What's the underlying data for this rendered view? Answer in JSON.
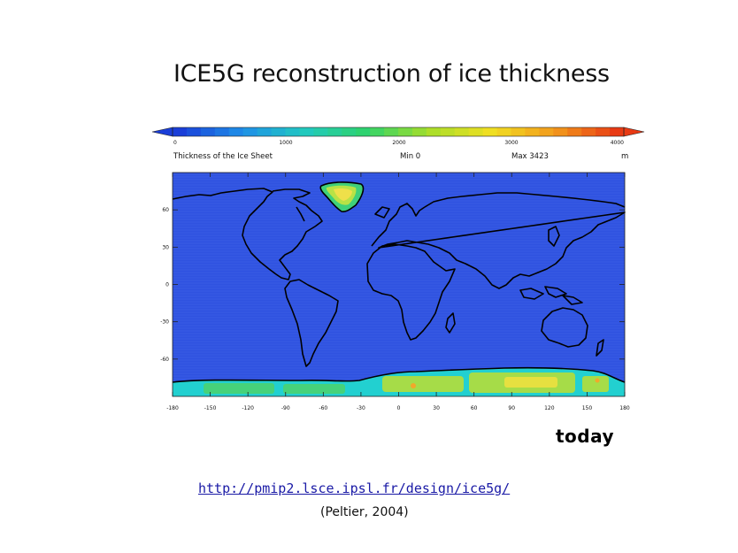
{
  "slide": {
    "title": "ICE5G reconstruction of ice thickness",
    "caption": "today",
    "source_url": "http://pmip2.lsce.ipsl.fr/design/ice5g/",
    "citation": "(Peltier, 2004)"
  },
  "colorbar": {
    "ticks": [
      "0",
      "1000",
      "2000",
      "3000",
      "4000"
    ],
    "variable": "Thickness of the Ice Sheet",
    "min_label": "Min 0",
    "max_label": "Max 3423",
    "units": "m",
    "colors": [
      "#1a3ed8",
      "#1e8fe8",
      "#22c9c0",
      "#2fd36a",
      "#a8de2a",
      "#f1df22",
      "#f29a1c",
      "#e83a14"
    ]
  },
  "map": {
    "ocean_color": "#2f52e0",
    "coast_color": "#000000",
    "lat_ticks": [
      "60",
      "30",
      "0",
      "-30",
      "-60"
    ],
    "lon_ticks": [
      "-180",
      "-150",
      "-120",
      "-90",
      "-60",
      "-30",
      "0",
      "30",
      "60",
      "90",
      "120",
      "150",
      "180"
    ],
    "ice_colors": {
      "greenland": [
        "#3fd07a",
        "#b8e246",
        "#efe04a"
      ],
      "antarctica": [
        "#22d0d0",
        "#46d27a",
        "#a6dc48",
        "#e6e040",
        "#f2a82a"
      ]
    }
  }
}
